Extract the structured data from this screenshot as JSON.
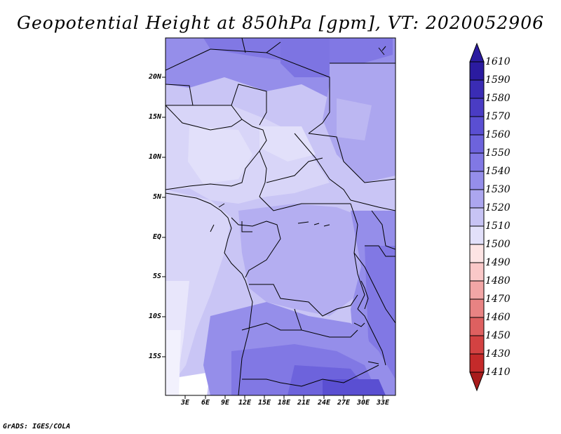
{
  "title": "Geopotential Height at 850hPa [gpm], VT: 2020052906",
  "credit": "GrADS: IGES/COLA",
  "map": {
    "lat_labels": [
      "20N",
      "15N",
      "10N",
      "5N",
      "EQ",
      "5S",
      "10S",
      "15S"
    ],
    "lon_labels": [
      "3E",
      "6E",
      "9E",
      "12E",
      "15E",
      "18E",
      "21E",
      "24E",
      "27E",
      "30E",
      "33E"
    ]
  },
  "colorbar": {
    "labels": [
      "1610",
      "1590",
      "1580",
      "1570",
      "1560",
      "1550",
      "1540",
      "1530",
      "1520",
      "1510",
      "1500",
      "1490",
      "1480",
      "1470",
      "1460",
      "1450",
      "1430",
      "1410"
    ],
    "colors": [
      "#2b1ba0",
      "#3a2cb4",
      "#4a3cc4",
      "#5a4fd2",
      "#6d63dc",
      "#8178e4",
      "#958eea",
      "#aca6ef",
      "#c7c3f4",
      "#e2e0fa",
      "#fde4e4",
      "#fac8c8",
      "#f2a6a6",
      "#e88383",
      "#de6060",
      "#d34242",
      "#c42a2a",
      "#a81c1c"
    ]
  }
}
